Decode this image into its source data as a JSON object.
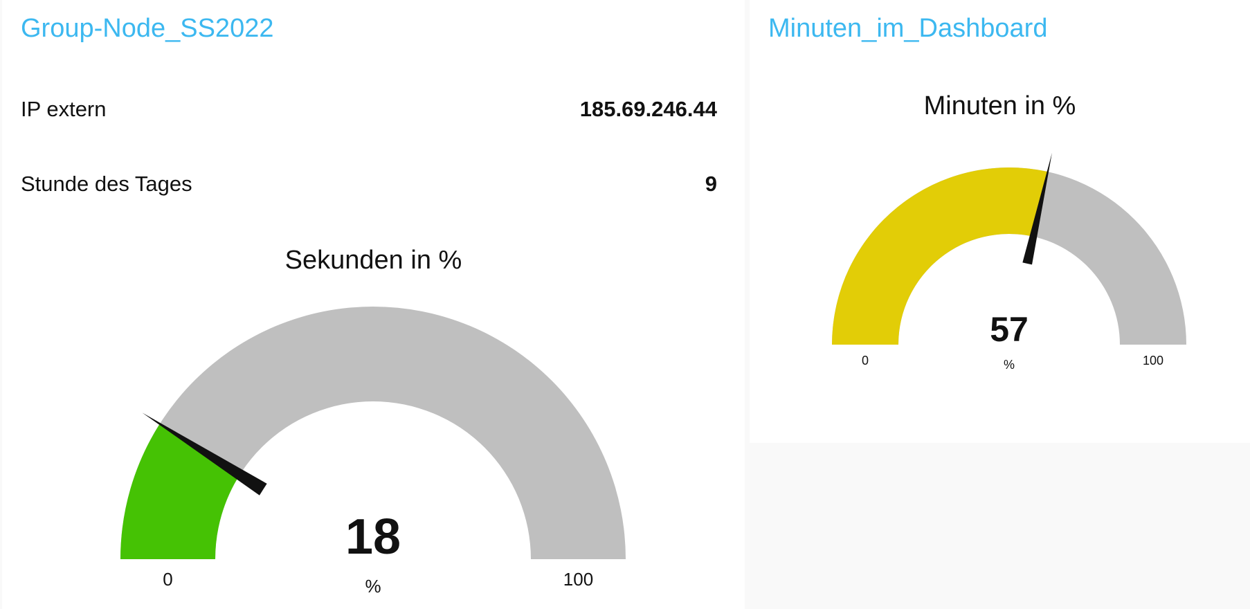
{
  "cards": {
    "left": {
      "title": "Group-Node_SS2022",
      "rows": [
        {
          "label": "IP extern",
          "value": "185.69.246.44"
        },
        {
          "label": "Stunde des Tages",
          "value": "9"
        }
      ],
      "gauge": {
        "title": "Sekunden in %",
        "value": 18,
        "value_text": "18",
        "unit": "%",
        "min": 0,
        "max": 100,
        "min_label": "0",
        "max_label": "100",
        "fill_color": "#45c204",
        "track_color": "#bfbfbf"
      }
    },
    "right": {
      "title": "Minuten_im_Dashboard",
      "gauge": {
        "title": "Minuten in %",
        "value": 57,
        "value_text": "57",
        "unit": "%",
        "min": 0,
        "max": 100,
        "min_label": "0",
        "max_label": "100",
        "fill_color": "#e2cd07",
        "track_color": "#bfbfbf"
      }
    }
  }
}
